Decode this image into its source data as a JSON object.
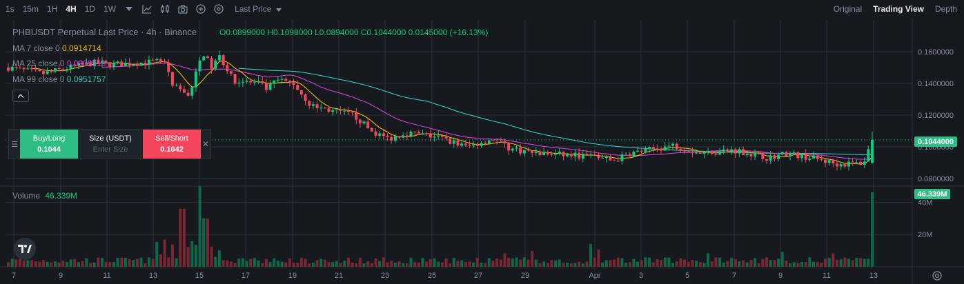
{
  "toolbar": {
    "timeframes": [
      "1s",
      "15m",
      "1H",
      "4H",
      "1D",
      "1W"
    ],
    "active_timeframe": "4H",
    "price_type": "Last Price",
    "views": [
      "Original",
      "Trading View",
      "Depth"
    ],
    "active_view": "Trading View"
  },
  "legend": {
    "title": "PHBUSDT Perpetual Last Price · 4h · Binance",
    "ohlc": "O0.0899000 H0.1098000 L0.0894000 C0.1044000 0.0145000 (+16.13%)",
    "ma7_label": "MA 7 close 0",
    "ma7_value": "0.0914714",
    "ma25_label": "MA 25 close 0",
    "ma25_value": "0.0908519",
    "ma99_label": "MA 99 close 0",
    "ma99_value": "0.0951757",
    "volume_label": "Volume",
    "volume_value": "46.339M"
  },
  "trade_panel": {
    "buy_label": "Buy/Long",
    "buy_price": "0.1044",
    "size_label": "Size (USDT)",
    "size_placeholder": "Enter Size",
    "sell_label": "Sell/Short",
    "sell_price": "0.1042"
  },
  "price_axis": {
    "ticks": [
      "0.1600000",
      "0.1400000",
      "0.1200000",
      "0.1000000",
      "0.0800000"
    ],
    "current_price_tag": "0.1044000",
    "volume_ticks": [
      "40M",
      "20M"
    ],
    "volume_tag": "46.339M"
  },
  "time_axis": {
    "labels": [
      "7",
      "9",
      "11",
      "13",
      "15",
      "17",
      "19",
      "21",
      "23",
      "25",
      "27",
      "29",
      "Apr",
      "3",
      "5",
      "7",
      "9",
      "11",
      "13"
    ]
  },
  "colors": {
    "up": "#0ecb81",
    "down": "#f6465d",
    "ma7": "#f0b90b",
    "ma25": "#d63fd6",
    "ma99": "#35c8c0",
    "grid": "#2b3139"
  },
  "chart_data": {
    "type": "candlestick",
    "symbol": "PHBUSDT Perpetual",
    "interval": "4h",
    "price_range": [
      0.075,
      0.175
    ],
    "volume_range": [
      0,
      50000000
    ],
    "anchors": {
      "first_close": 0.15,
      "pump_high_day15": 0.165,
      "last_open": 0.0899,
      "last_high": 0.1098,
      "last_low": 0.0894,
      "last_close": 0.1044,
      "last_volume_M": 46.339
    },
    "ma7_last": 0.0914714,
    "ma25_last": 0.0908519,
    "ma99_last": 0.0951757
  },
  "icons": {
    "indicator": "indicator-icon",
    "candle_type": "candle-type-icon",
    "screenshot": "camera-icon",
    "add": "plus-circle-icon",
    "settings": "gear-icon",
    "dropdown": "chevron-down-icon",
    "logo": "tradingview-logo"
  }
}
